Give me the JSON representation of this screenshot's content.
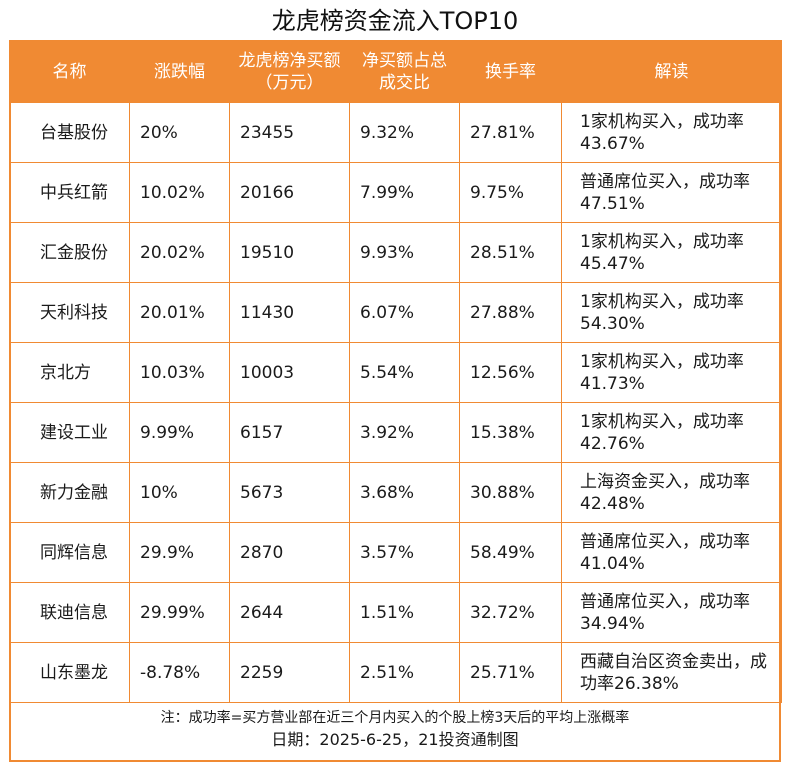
{
  "title": "龙虎榜资金流入TOP10",
  "headers": [
    "名称",
    "涨跌幅",
    "龙虎榜净买额（万元）",
    "净买额占总成交比",
    "换手率",
    "解读"
  ],
  "rows": [
    {
      "name": "台基股份",
      "change": "20%",
      "net_buy": "23455",
      "ratio": "9.32%",
      "turnover": "27.81%",
      "reading": "1家机构买入，成功率43.67%"
    },
    {
      "name": "中兵红箭",
      "change": "10.02%",
      "net_buy": "20166",
      "ratio": "7.99%",
      "turnover": "9.75%",
      "reading": "普通席位买入，成功率47.51%"
    },
    {
      "name": "汇金股份",
      "change": "20.02%",
      "net_buy": "19510",
      "ratio": "9.93%",
      "turnover": "28.51%",
      "reading": "1家机构买入，成功率45.47%"
    },
    {
      "name": "天利科技",
      "change": "20.01%",
      "net_buy": "11430",
      "ratio": "6.07%",
      "turnover": "27.88%",
      "reading": "1家机构买入，成功率54.30%"
    },
    {
      "name": "京北方",
      "change": "10.03%",
      "net_buy": "10003",
      "ratio": "5.54%",
      "turnover": "12.56%",
      "reading": "1家机构买入，成功率41.73%"
    },
    {
      "name": "建设工业",
      "change": "9.99%",
      "net_buy": "6157",
      "ratio": "3.92%",
      "turnover": "15.38%",
      "reading": "1家机构买入，成功率42.76%"
    },
    {
      "name": "新力金融",
      "change": "10%",
      "net_buy": "5673",
      "ratio": "3.68%",
      "turnover": "30.88%",
      "reading": "上海资金买入，成功率42.48%"
    },
    {
      "name": "同辉信息",
      "change": "29.9%",
      "net_buy": "2870",
      "ratio": "3.57%",
      "turnover": "58.49%",
      "reading": "普通席位买入，成功率41.04%"
    },
    {
      "name": "联迪信息",
      "change": "29.99%",
      "net_buy": "2644",
      "ratio": "1.51%",
      "turnover": "32.72%",
      "reading": "普通席位买入，成功率34.94%"
    },
    {
      "name": "山东墨龙",
      "change": "-8.78%",
      "net_buy": "2259",
      "ratio": "2.51%",
      "turnover": "25.71%",
      "reading": "西藏自治区资金卖出，成功率26.38%"
    }
  ],
  "footer": {
    "note": "注：成功率=买方营业部在近三个月内买入的个股上榜3天后的平均上涨概率",
    "date": "日期：2025-6-25，21投资通制图"
  },
  "colors": {
    "accent": "#f08a33",
    "header_text": "#ffffff"
  }
}
